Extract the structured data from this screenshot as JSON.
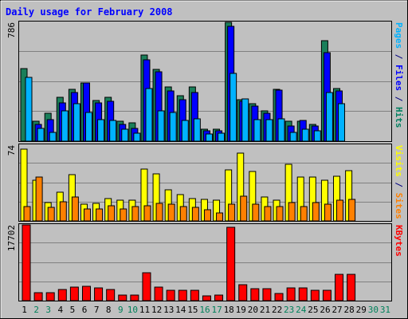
{
  "chart_data": {
    "type": "bar",
    "title": "Daily usage for February 2008",
    "x": [
      "1",
      "2",
      "3",
      "4",
      "5",
      "6",
      "7",
      "8",
      "9",
      "10",
      "11",
      "12",
      "13",
      "14",
      "15",
      "16",
      "17",
      "18",
      "19",
      "20",
      "21",
      "22",
      "23",
      "24",
      "25",
      "26",
      "27",
      "28",
      "29",
      "30",
      "31"
    ],
    "weekend_days": [
      2,
      3,
      9,
      10,
      16,
      17,
      23,
      24,
      30,
      31
    ],
    "days_with_data": 29,
    "panels": [
      {
        "name": "pages-files-hits",
        "ymax_label": "786",
        "ymax": 786,
        "grid": true,
        "side_labels": [
          {
            "text": "Pages",
            "color": "#00b2ff"
          },
          {
            "text": " / ",
            "color": "#000080"
          },
          {
            "text": "Files",
            "color": "#0000ff"
          },
          {
            "text": " / ",
            "color": "#000080"
          },
          {
            "text": "Hits",
            "color": "#008060"
          }
        ],
        "series": [
          {
            "name": "Hits",
            "color": "#1a7f5a",
            "values": [
              480,
              130,
              185,
              290,
              345,
              385,
              270,
              290,
              130,
              120,
              570,
              475,
              360,
              300,
              360,
              80,
              80,
              786,
              275,
              250,
              200,
              345,
              130,
              130,
              110,
              665,
              350,
              0,
              0,
              0,
              0
            ]
          },
          {
            "name": "Files",
            "color": "#0000ff",
            "values": [
              0,
              110,
              140,
              255,
              320,
              385,
              255,
              265,
              110,
              85,
              540,
              460,
              330,
              275,
              320,
              70,
              70,
              760,
              265,
              230,
              185,
              340,
              100,
              135,
              100,
              585,
              330,
              0,
              0,
              0,
              0
            ]
          },
          {
            "name": "Pages",
            "color": "#00b2ff",
            "values": [
              420,
              85,
              60,
              200,
              250,
              190,
              140,
              135,
              80,
              55,
              350,
              200,
              190,
              135,
              150,
              45,
              55,
              450,
              280,
              140,
              140,
              150,
              60,
              80,
              70,
              320,
              250,
              0,
              0,
              0,
              0
            ]
          }
        ]
      },
      {
        "name": "visits-sites",
        "ymax_label": "74",
        "ymax": 74,
        "grid": true,
        "side_labels": [
          {
            "text": "Visits",
            "color": "#ffff00"
          },
          {
            "text": " / ",
            "color": "#000080"
          },
          {
            "text": "Sites",
            "color": "#ff8000"
          }
        ],
        "series": [
          {
            "name": "Visits",
            "color": "#ffff00",
            "values": [
              70,
              40,
              18,
              28,
              45,
              16,
              17,
              22,
              20,
              20,
              51,
              46,
              30,
              26,
              22,
              21,
              20,
              50,
              66,
              48,
              23,
              20,
              55,
              43,
              43,
              40,
              44,
              49,
              0,
              0,
              0
            ]
          },
          {
            "name": "Sites",
            "color": "#ff8000",
            "values": [
              14,
              43,
              13,
              19,
              23,
              12,
              12,
              15,
              12,
              14,
              15,
              17,
              16,
              14,
              13,
              11,
              8,
              16,
              24,
              16,
              14,
              14,
              18,
              14,
              18,
              16,
              20,
              21,
              0,
              0,
              0
            ]
          }
        ]
      },
      {
        "name": "kbytes",
        "ymax_label": "17702",
        "ymax": 17702,
        "grid": true,
        "side_labels": [
          {
            "text": "KBytes",
            "color": "#ff0000"
          }
        ],
        "series": [
          {
            "name": "KBytes",
            "color": "#ff0000",
            "values": [
              17702,
              1800,
              1800,
              2650,
              3200,
              3300,
              2900,
              2650,
              1250,
              1250,
              6600,
              3100,
              2400,
              2500,
              2400,
              1200,
              1250,
              17200,
              3700,
              2750,
              2750,
              1650,
              2900,
              2950,
              2500,
              2500,
              6200,
              6200,
              0,
              0,
              0
            ]
          }
        ]
      }
    ]
  }
}
